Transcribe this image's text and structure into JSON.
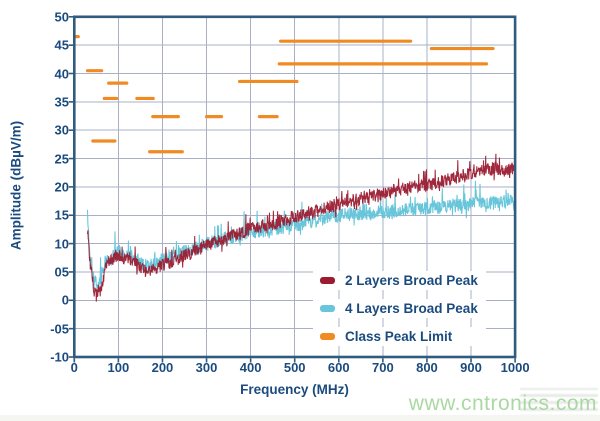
{
  "page": {
    "watermark": "www.cntronics.com"
  },
  "colors": {
    "axis_text": "#1b4b7e",
    "frame": "#2e5b7e",
    "grid": "#a9b0c6",
    "series_2layer": "#9b1c31",
    "series_4layer": "#68c5da",
    "limit": "#f08a22",
    "watermark": "#a6d69e",
    "background": "#ffffff"
  },
  "chart_data": {
    "type": "line",
    "title": "",
    "xlabel": "Frequency (MHz)",
    "ylabel": "Amplitude (dBµV/m)",
    "xlim": [
      0,
      1000
    ],
    "ylim": [
      -10,
      50
    ],
    "grid": true,
    "legend_position": "inside-bottom-right",
    "x_tick_labels": [
      "0",
      "100",
      "200",
      "300",
      "400",
      "500",
      "600",
      "700",
      "800",
      "900",
      "1000"
    ],
    "x_tick_values": [
      0,
      100,
      200,
      300,
      400,
      500,
      600,
      700,
      800,
      900,
      1000
    ],
    "y_tick_labels": [
      "50",
      "45",
      "40",
      "35",
      "30",
      "25",
      "20",
      "15",
      "10",
      "05",
      "0",
      "-05",
      "-10"
    ],
    "y_tick_values": [
      50,
      45,
      40,
      35,
      30,
      25,
      20,
      15,
      10,
      5,
      0,
      -5,
      -10
    ],
    "series": [
      {
        "name": "2 Layers Broad Peak",
        "color": "#9b1c31",
        "style": "noisy-line",
        "points": [
          [
            30,
            12.8
          ],
          [
            32,
            10.5
          ],
          [
            34,
            8.0
          ],
          [
            36,
            6.5
          ],
          [
            38,
            5.2
          ],
          [
            40,
            4.2
          ],
          [
            43,
            2.6
          ],
          [
            46,
            1.4
          ],
          [
            50,
            0.9
          ],
          [
            54,
            0.7
          ],
          [
            58,
            1.3
          ],
          [
            62,
            2.2
          ],
          [
            66,
            3.6
          ],
          [
            70,
            5.6
          ],
          [
            74,
            6.4
          ],
          [
            78,
            6.8
          ],
          [
            82,
            6.9
          ],
          [
            86,
            7.0
          ],
          [
            90,
            7.2
          ],
          [
            95,
            7.7
          ],
          [
            100,
            8.1
          ],
          [
            105,
            7.8
          ],
          [
            110,
            7.5
          ],
          [
            115,
            7.4
          ],
          [
            120,
            7.6
          ],
          [
            125,
            7.4
          ],
          [
            130,
            7.1
          ],
          [
            135,
            6.8
          ],
          [
            140,
            6.5
          ],
          [
            145,
            6.1
          ],
          [
            150,
            5.7
          ],
          [
            155,
            5.4
          ],
          [
            160,
            5.2
          ],
          [
            165,
            5.1
          ],
          [
            170,
            5.1
          ],
          [
            175,
            5.2
          ],
          [
            180,
            5.4
          ],
          [
            185,
            5.6
          ],
          [
            190,
            5.8
          ],
          [
            195,
            6.0
          ],
          [
            200,
            6.2
          ],
          [
            210,
            6.5
          ],
          [
            220,
            6.8
          ],
          [
            230,
            7.1
          ],
          [
            240,
            7.5
          ],
          [
            250,
            7.9
          ],
          [
            260,
            8.2
          ],
          [
            270,
            8.5
          ],
          [
            280,
            8.9
          ],
          [
            290,
            9.3
          ],
          [
            300,
            9.7
          ],
          [
            320,
            10.3
          ],
          [
            340,
            10.9
          ],
          [
            360,
            11.4
          ],
          [
            380,
            12.0
          ],
          [
            400,
            12.6
          ],
          [
            420,
            13.0
          ],
          [
            440,
            13.4
          ],
          [
            460,
            13.8
          ],
          [
            480,
            14.3
          ],
          [
            500,
            14.8
          ],
          [
            520,
            15.2
          ],
          [
            540,
            15.6
          ],
          [
            560,
            16.0
          ],
          [
            580,
            16.5
          ],
          [
            600,
            17.0
          ],
          [
            620,
            17.4
          ],
          [
            640,
            17.8
          ],
          [
            660,
            18.1
          ],
          [
            680,
            18.5
          ],
          [
            700,
            18.8
          ],
          [
            720,
            19.2
          ],
          [
            740,
            19.6
          ],
          [
            760,
            19.9
          ],
          [
            780,
            20.1
          ],
          [
            800,
            20.3
          ],
          [
            820,
            20.7
          ],
          [
            840,
            21.1
          ],
          [
            860,
            21.6
          ],
          [
            880,
            22.0
          ],
          [
            900,
            22.3
          ],
          [
            920,
            22.7
          ],
          [
            940,
            23.1
          ],
          [
            955,
            23.4
          ],
          [
            965,
            23.0
          ],
          [
            980,
            22.9
          ],
          [
            990,
            23.2
          ],
          [
            1000,
            23.6
          ]
        ]
      },
      {
        "name": "4 Layers Broad Peak",
        "color": "#68c5da",
        "style": "noisy-line",
        "points": [
          [
            30,
            15.8
          ],
          [
            32,
            12.5
          ],
          [
            34,
            9.5
          ],
          [
            36,
            7.5
          ],
          [
            38,
            6.2
          ],
          [
            40,
            5.2
          ],
          [
            44,
            4.0
          ],
          [
            48,
            3.3
          ],
          [
            52,
            3.1
          ],
          [
            56,
            3.3
          ],
          [
            60,
            3.9
          ],
          [
            64,
            5.0
          ],
          [
            68,
            6.3
          ],
          [
            72,
            7.1
          ],
          [
            76,
            7.4
          ],
          [
            80,
            7.5
          ],
          [
            85,
            7.6
          ],
          [
            90,
            7.8
          ],
          [
            95,
            8.3
          ],
          [
            100,
            8.7
          ],
          [
            105,
            8.3
          ],
          [
            110,
            8.0
          ],
          [
            115,
            7.9
          ],
          [
            120,
            8.0
          ],
          [
            125,
            7.9
          ],
          [
            130,
            7.7
          ],
          [
            135,
            7.4
          ],
          [
            140,
            7.1
          ],
          [
            145,
            6.8
          ],
          [
            150,
            6.5
          ],
          [
            155,
            6.3
          ],
          [
            160,
            6.2
          ],
          [
            165,
            6.1
          ],
          [
            170,
            6.1
          ],
          [
            175,
            6.2
          ],
          [
            180,
            6.4
          ],
          [
            185,
            6.5
          ],
          [
            190,
            6.7
          ],
          [
            195,
            6.9
          ],
          [
            200,
            7.1
          ],
          [
            210,
            7.3
          ],
          [
            220,
            7.6
          ],
          [
            230,
            7.9
          ],
          [
            240,
            8.2
          ],
          [
            250,
            8.5
          ],
          [
            260,
            8.7
          ],
          [
            270,
            9.0
          ],
          [
            280,
            9.3
          ],
          [
            290,
            9.6
          ],
          [
            300,
            9.9
          ],
          [
            320,
            10.4
          ],
          [
            340,
            10.8
          ],
          [
            360,
            11.2
          ],
          [
            380,
            11.6
          ],
          [
            400,
            11.9
          ],
          [
            420,
            12.2
          ],
          [
            440,
            12.5
          ],
          [
            460,
            12.8
          ],
          [
            480,
            13.0
          ],
          [
            500,
            13.2
          ],
          [
            520,
            13.5
          ],
          [
            540,
            13.9
          ],
          [
            560,
            14.3
          ],
          [
            580,
            14.7
          ],
          [
            600,
            15.0
          ],
          [
            620,
            15.2
          ],
          [
            640,
            15.3
          ],
          [
            660,
            15.4
          ],
          [
            680,
            15.5
          ],
          [
            700,
            15.5
          ],
          [
            720,
            15.6
          ],
          [
            740,
            15.8
          ],
          [
            760,
            16.0
          ],
          [
            780,
            16.1
          ],
          [
            800,
            16.3
          ],
          [
            820,
            16.4
          ],
          [
            840,
            16.5
          ],
          [
            860,
            16.7
          ],
          [
            880,
            16.9
          ],
          [
            900,
            17.0
          ],
          [
            920,
            17.1
          ],
          [
            940,
            17.2
          ],
          [
            960,
            17.2
          ],
          [
            980,
            17.3
          ],
          [
            1000,
            17.5
          ]
        ]
      },
      {
        "name": "Class Peak Limit",
        "color": "#f08a22",
        "style": "segments",
        "segments": [
          [
            0,
            9,
            46.5
          ],
          [
            30,
            62,
            40.5
          ],
          [
            42,
            92,
            28.1
          ],
          [
            68,
            96,
            35.6
          ],
          [
            78,
            119,
            38.3
          ],
          [
            142,
            179,
            35.6
          ],
          [
            171,
            245,
            26.2
          ],
          [
            178,
            236,
            32.4
          ],
          [
            300,
            334,
            32.4
          ],
          [
            375,
            505,
            38.6
          ],
          [
            420,
            460,
            32.4
          ],
          [
            468,
            763,
            45.7
          ],
          [
            465,
            935,
            41.7
          ],
          [
            810,
            950,
            44.4
          ]
        ]
      }
    ]
  }
}
